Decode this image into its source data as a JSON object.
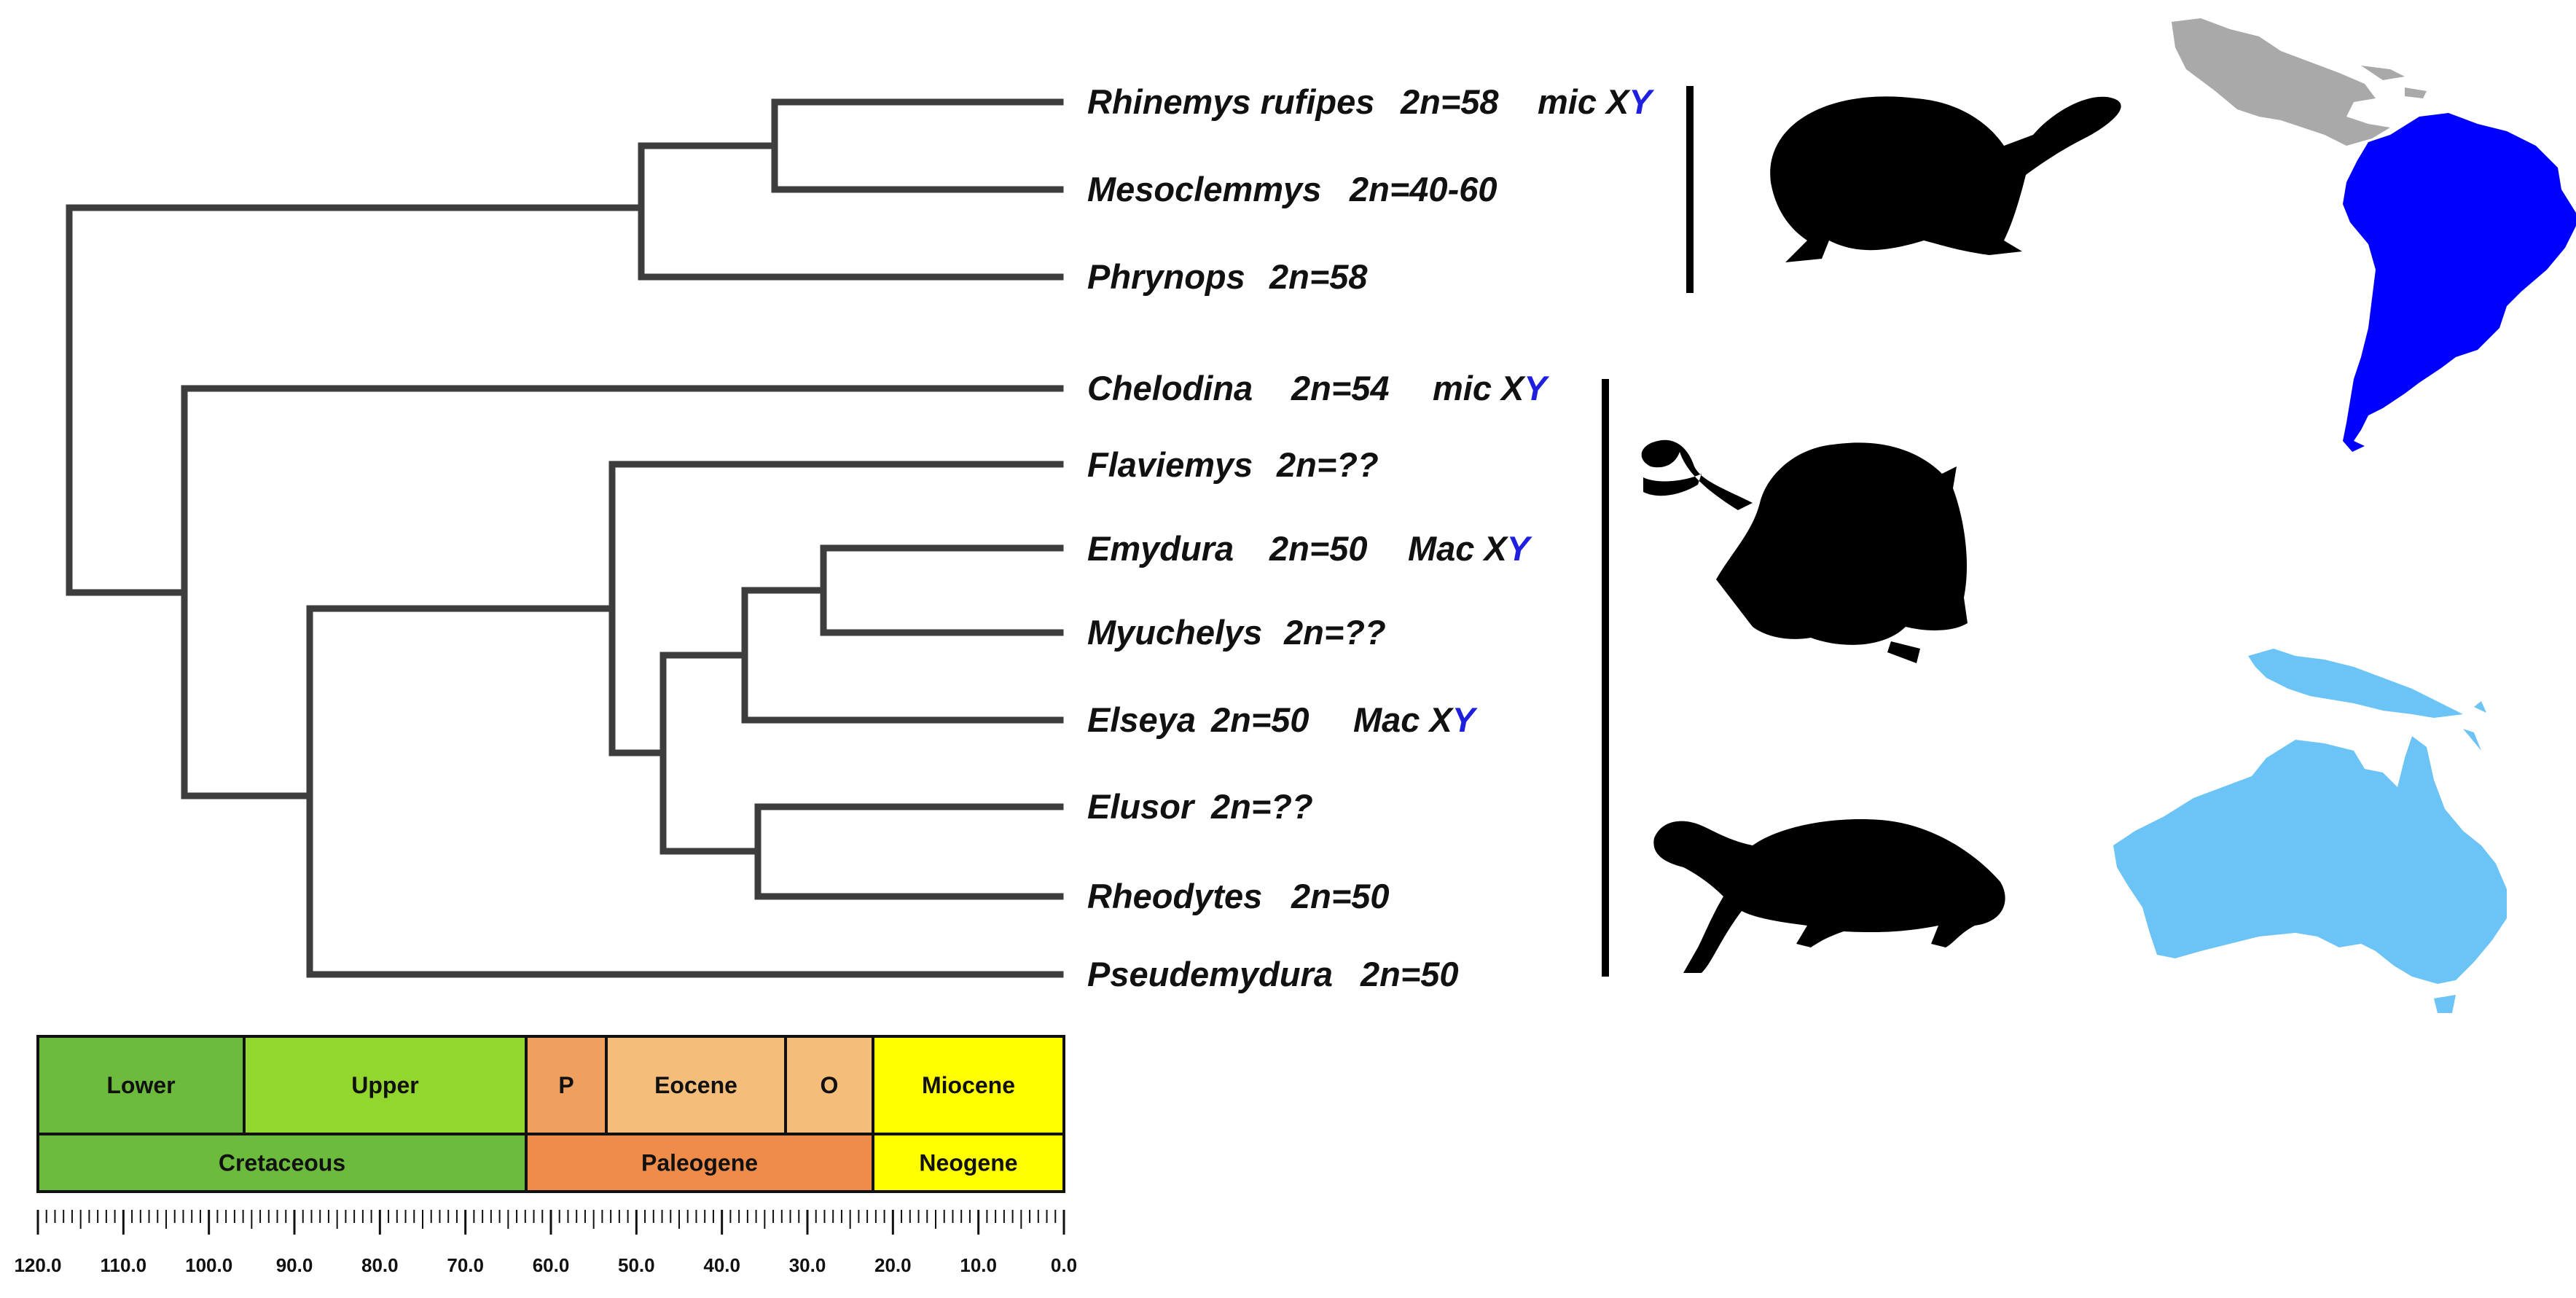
{
  "taxa": [
    {
      "genus": "Rhinemys rufipes",
      "karyotype": "2n=58",
      "sex_chrom_prefix": "mic X",
      "sex_chrom_y": "Y"
    },
    {
      "genus": "Mesoclemmys",
      "karyotype": "2n=40-60"
    },
    {
      "genus": "Phrynops",
      "karyotype": "2n=58"
    },
    {
      "genus": "Chelodina",
      "karyotype": "2n=54",
      "sex_chrom_prefix": "mic X",
      "sex_chrom_y": "Y"
    },
    {
      "genus": "Flaviemys",
      "karyotype": "2n=??"
    },
    {
      "genus": "Emydura",
      "karyotype": "2n=50",
      "sex_chrom_prefix": "Mac X",
      "sex_chrom_y": "Y"
    },
    {
      "genus": "Myuchelys",
      "karyotype": "2n=??"
    },
    {
      "genus": "Elseya",
      "karyotype": "2n=50",
      "sex_chrom_prefix": "Mac X",
      "sex_chrom_y": "Y"
    },
    {
      "genus": "Elusor",
      "karyotype": "2n=??"
    },
    {
      "genus": "Rheodytes",
      "karyotype": "2n=50"
    },
    {
      "genus": "Pseudemydura",
      "karyotype": "2n=50"
    }
  ],
  "timescale": {
    "epochs": [
      {
        "label": "Lower",
        "color": "#6cbb3c"
      },
      {
        "label": "Upper",
        "color": "#93d62e"
      },
      {
        "label": "P",
        "color": "#f0a05e"
      },
      {
        "label": "Eocene",
        "color": "#f5bd7a"
      },
      {
        "label": "O",
        "color": "#f5bd7a"
      },
      {
        "label": "Miocene",
        "color": "#ffff00"
      }
    ],
    "periods": [
      {
        "label": "Cretaceous",
        "color": "#6cbb3c"
      },
      {
        "label": "Paleogene",
        "color": "#f08c4a"
      },
      {
        "label": "Neogene",
        "color": "#ffff00"
      }
    ],
    "tick_labels": [
      "120.0",
      "110.0",
      "100.0",
      "90.0",
      "80.0",
      "70.0",
      "60.0",
      "50.0",
      "40.0",
      "30.0",
      "20.0",
      "10.0",
      "0.0"
    ]
  },
  "colors": {
    "branch": "#3d3d3d",
    "y_chromosome": "#1f1fe0",
    "south_america": "#0000ff",
    "central_america": "#a9a9a9",
    "australia": "#6cc3f5",
    "silhouette": "#000000"
  },
  "icons": [
    "turtle-silhouette",
    "south-america-map",
    "australia-map"
  ]
}
